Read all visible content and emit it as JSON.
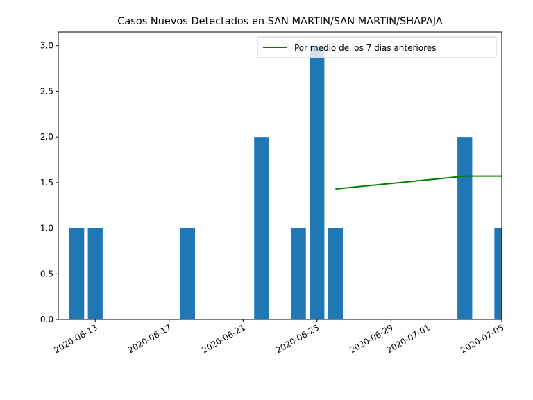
{
  "chart_data": {
    "type": "bar",
    "title": "Casos Nuevos Detectados en SAN MARTIN/SAN MARTIN/SHAPAJA",
    "xlabel": "",
    "ylabel": "",
    "xlim": [
      "2020-06-11",
      "2020-07-05"
    ],
    "ylim": [
      0,
      3.15
    ],
    "y_ticks": [
      0.0,
      0.5,
      1.0,
      1.5,
      2.0,
      2.5,
      3.0
    ],
    "x_tick_labels": [
      "2020-06-13",
      "2020-06-17",
      "2020-06-21",
      "2020-06-25",
      "2020-06-29",
      "2020-07-01",
      "2020-07-05"
    ],
    "grid": false,
    "legend_position": "top-right",
    "colors": {
      "bars": "#1f77b4",
      "average_line": "#008000"
    },
    "bars": {
      "dates": [
        "2020-06-12",
        "2020-06-13",
        "2020-06-18",
        "2020-06-22",
        "2020-06-24",
        "2020-06-25",
        "2020-06-26",
        "2020-07-03",
        "2020-07-05"
      ],
      "values": [
        1,
        1,
        1,
        2,
        1,
        3,
        1,
        2,
        1
      ]
    },
    "series": [
      {
        "name": "Por medio de los 7 dias anteriores",
        "type": "line",
        "x": [
          "2020-06-26",
          "2020-07-03",
          "2020-07-04",
          "2020-07-05"
        ],
        "values": [
          1.43,
          1.57,
          1.57,
          1.57
        ]
      }
    ]
  }
}
